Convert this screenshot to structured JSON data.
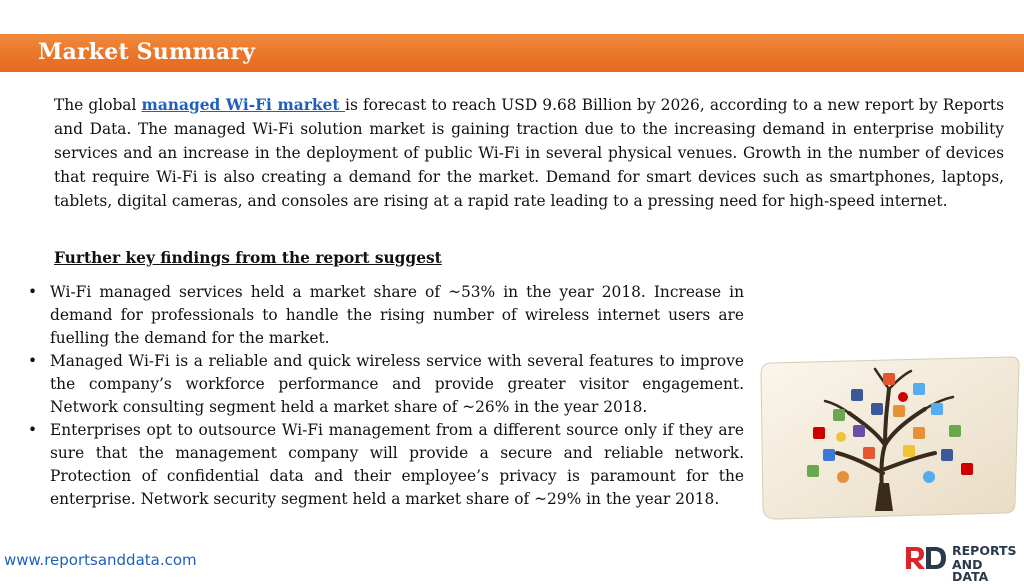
{
  "header": {
    "title": "Market Summary"
  },
  "intro": {
    "before_link": "The global ",
    "link_text": "managed Wi-Fi market ",
    "after_link": "is forecast to reach USD 9.68 Billion by 2026, according to a new report by Reports and Data. The managed Wi-Fi solution market is gaining traction due to the increasing demand in enterprise mobility services and an increase in the deployment of public Wi-Fi in several physical venues. Growth in the number of devices that require Wi-Fi is also creating a demand for the market. Demand for smart devices such as smartphones, laptops, tablets, digital cameras, and consoles are rising at a rapid rate leading to a pressing need for high-speed internet."
  },
  "findings": {
    "heading": "Further key findings from the report suggest",
    "items": [
      "Wi-Fi managed services held a market share of ~53% in the year 2018. Increase in demand for professionals to handle the rising number of wireless internet users are fuelling the demand for the market.",
      "Managed Wi-Fi is a reliable and quick wireless service with several features to improve the company’s workforce performance and provide greater visitor engagement. Network consulting segment held a market share of ~26% in the year 2018.",
      "Enterprises opt to outsource Wi-Fi management from a different source only if they are sure that the management company will provide a secure and reliable network. Protection of confidential data and their employee’s privacy is paramount for the enterprise. Network security segment held a market share of ~29% in the year 2018."
    ]
  },
  "footer": {
    "website": "www.reportsanddata.com",
    "logo_mark": "RD",
    "logo_line1": "REPORTS",
    "logo_line2": "AND DATA"
  },
  "image": {
    "icon": "social-media-tree-image"
  },
  "colors": {
    "banner": "#ea7428",
    "link": "#1f5fc0",
    "logo_red": "#d9262c",
    "logo_navy": "#2a3a4a"
  }
}
